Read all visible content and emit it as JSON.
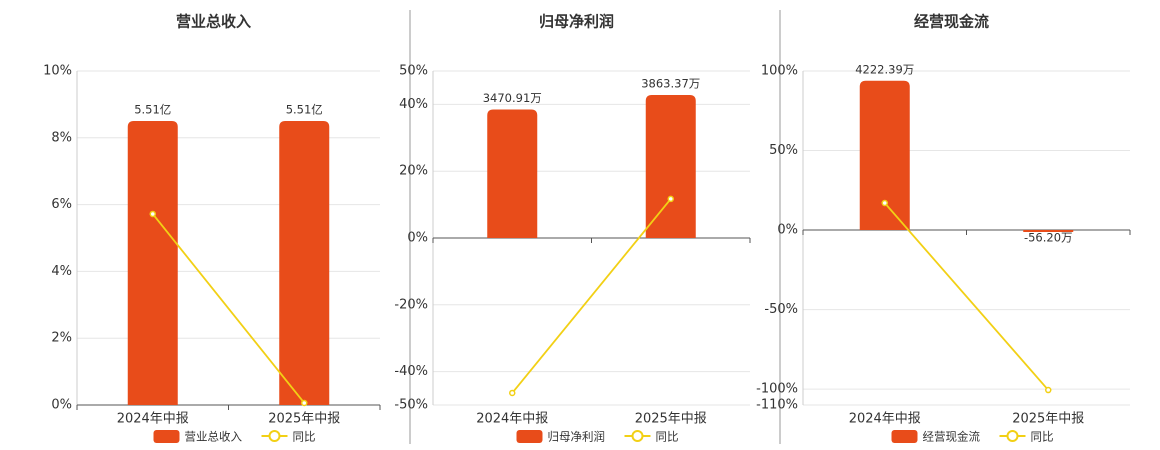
{
  "chart_data": [
    {
      "type": "bar",
      "title": "营业总收入",
      "categories": [
        "2024年中报",
        "2025年中报"
      ],
      "series": [
        {
          "name": "营业总收入",
          "color": "#e84c1a",
          "axis": "y2",
          "values": [
            5.51,
            5.51
          ],
          "value_labels": [
            "5.51亿",
            "5.51亿"
          ]
        },
        {
          "name": "同比",
          "type": "line",
          "color": "#f2d015",
          "values": [
            5.72,
            0.06
          ]
        }
      ],
      "ylim": [
        0,
        10
      ],
      "yticks": [
        {
          "value": 0,
          "label": "0%"
        },
        {
          "value": 2,
          "label": "2%"
        },
        {
          "value": 4,
          "label": "4%"
        },
        {
          "value": 6,
          "label": "6%"
        },
        {
          "value": 8,
          "label": "8%"
        },
        {
          "value": 10,
          "label": "10%"
        }
      ],
      "y2lim": [
        0,
        6.48
      ],
      "grid": true
    },
    {
      "type": "bar",
      "title": "归母净利润",
      "categories": [
        "2024年中报",
        "2025年中报"
      ],
      "series": [
        {
          "name": "归母净利润",
          "color": "#e84c1a",
          "axis": "y2",
          "values": [
            3470.91,
            3863.37
          ],
          "value_labels": [
            "3470.91万",
            "3863.37万"
          ]
        },
        {
          "name": "同比",
          "type": "line",
          "color": "#f2d015",
          "values": [
            -46.4,
            11.7
          ]
        }
      ],
      "ylim": [
        -50,
        50
      ],
      "yticks": [
        {
          "value": -50,
          "label": "-50%"
        },
        {
          "value": -40,
          "label": "-40%"
        },
        {
          "value": -20,
          "label": "-20%"
        },
        {
          "value": 0,
          "label": "0%"
        },
        {
          "value": 20,
          "label": "20%"
        },
        {
          "value": 40,
          "label": "40%"
        },
        {
          "value": 50,
          "label": "50%"
        }
      ],
      "y2lim": [
        -4510,
        4510
      ],
      "grid": true
    },
    {
      "type": "bar",
      "title": "经营现金流",
      "categories": [
        "2024年中报",
        "2025年中报"
      ],
      "series": [
        {
          "name": "经营现金流",
          "color": "#e84c1a",
          "axis": "y2",
          "values": [
            4222.39,
            -56.2
          ],
          "value_labels": [
            "4222.39万",
            "-56.20万"
          ]
        },
        {
          "name": "同比",
          "type": "line",
          "color": "#f2d015",
          "values": [
            17,
            -100.6
          ]
        }
      ],
      "ylim": [
        -110,
        100
      ],
      "yticks": [
        {
          "value": -110,
          "label": "-110%"
        },
        {
          "value": -100,
          "label": "-100%"
        },
        {
          "value": -50,
          "label": "-50%"
        },
        {
          "value": 0,
          "label": "0%"
        },
        {
          "value": 50,
          "label": "50%"
        },
        {
          "value": 100,
          "label": "100%"
        }
      ],
      "y2lim": [
        -4950,
        4500
      ],
      "grid": true
    }
  ]
}
